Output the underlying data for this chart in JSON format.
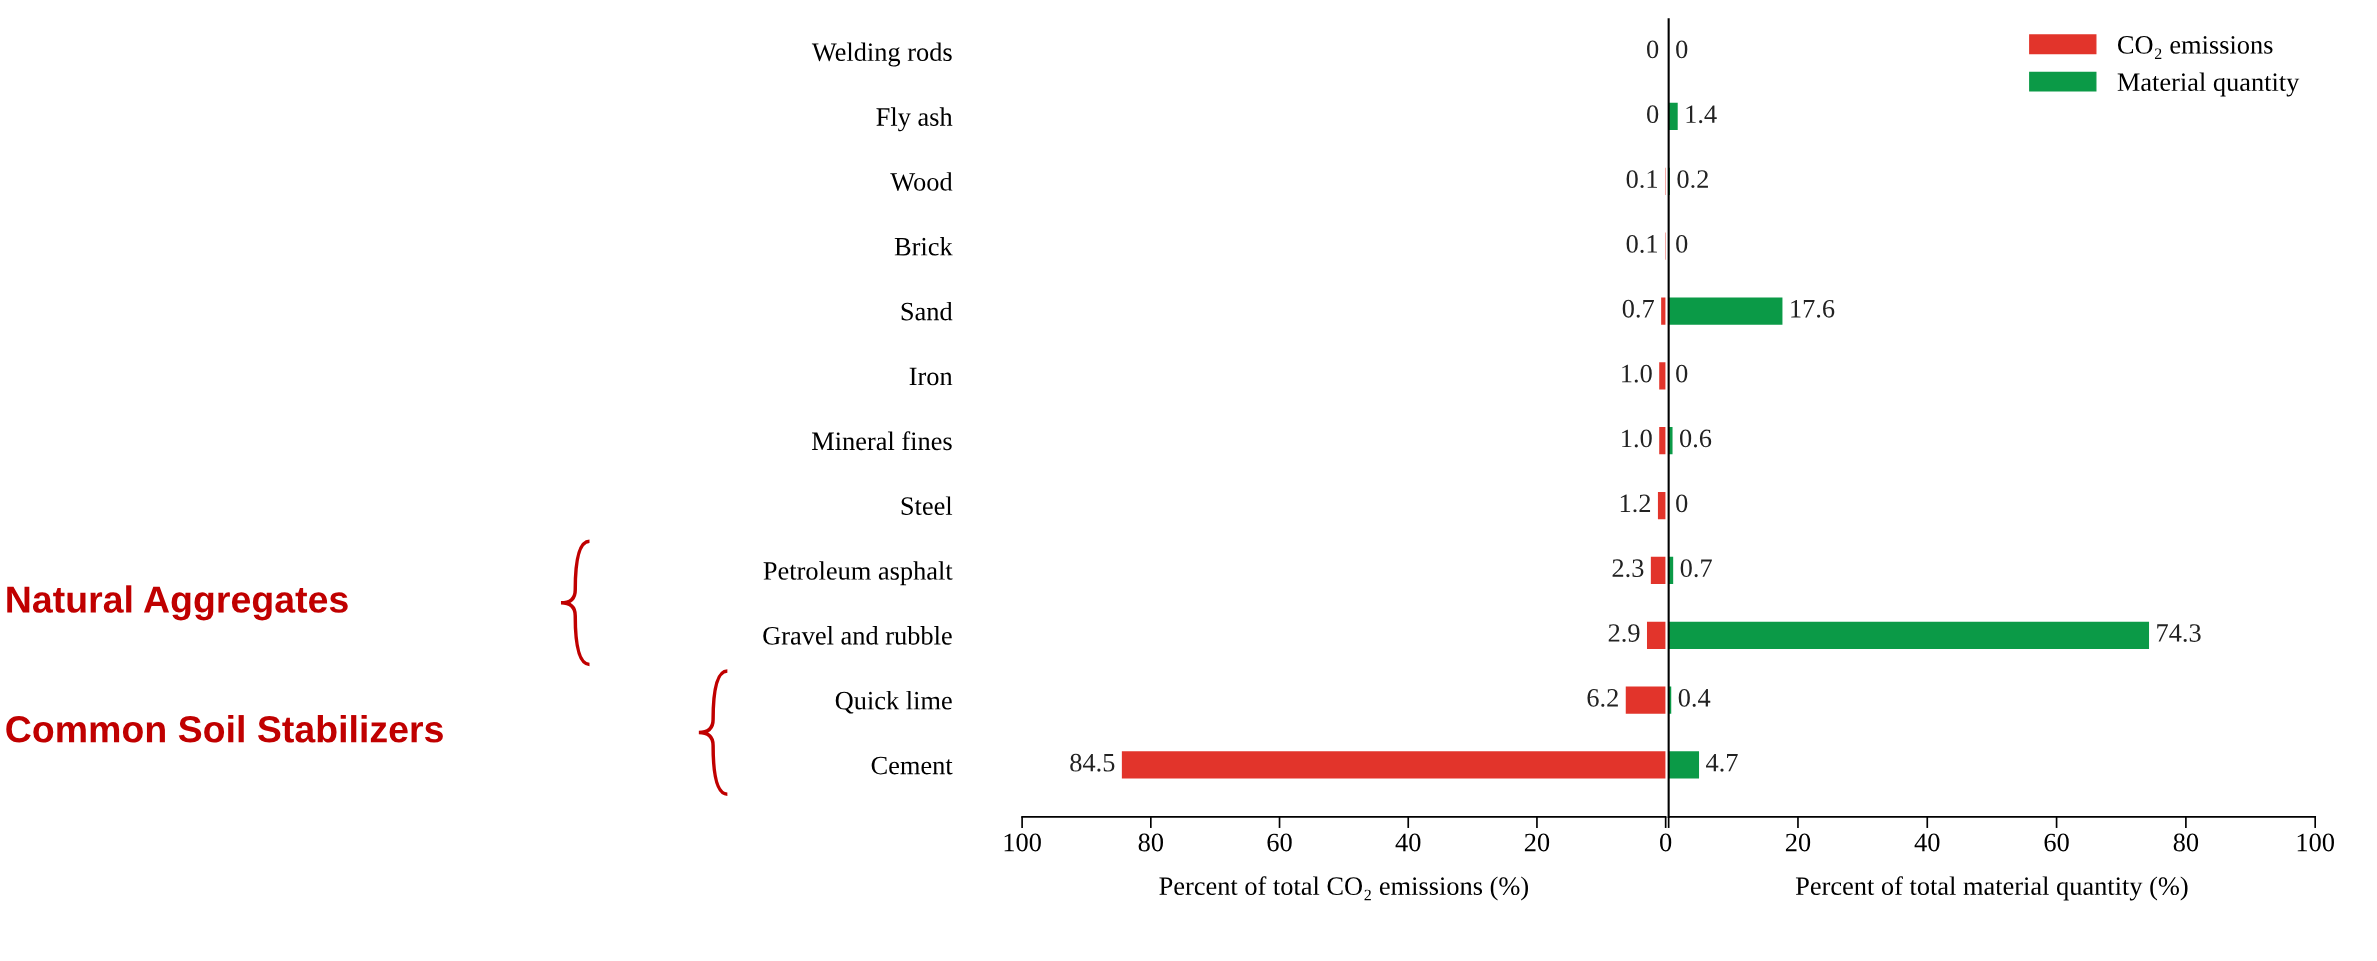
{
  "chart_data": [
    {
      "type": "bar",
      "orientation": "horizontal",
      "categories": [
        "Welding rods",
        "Fly ash",
        "Wood",
        "Brick",
        "Sand",
        "Iron",
        "Mineral fines",
        "Steel",
        "Petroleum asphalt",
        "Gravel and rubble",
        "Quick lime",
        "Cement"
      ],
      "series": [
        {
          "name": "CO₂ emissions",
          "color": "#e2342b",
          "values": [
            0,
            0,
            0.1,
            0.1,
            0.7,
            1.0,
            1.0,
            1.2,
            2.3,
            2.9,
            6.2,
            84.5
          ],
          "value_labels": [
            "0",
            "0",
            "0.1",
            "0.1",
            "0.7",
            "1.0",
            "1.0",
            "1.2",
            "2.3",
            "2.9",
            "6.2",
            "84.5"
          ]
        }
      ],
      "xlim": [
        100,
        0
      ],
      "xticks": [
        100,
        80,
        60,
        40,
        20,
        0
      ],
      "xlabel": "Percent of total CO₂ emissions (%)",
      "legend": "top right",
      "grid": false,
      "annotations": [
        "Natural Aggregates",
        "Common Soil Stabilizers"
      ]
    },
    {
      "type": "bar",
      "orientation": "horizontal",
      "categories": [
        null,
        null,
        null,
        null,
        null,
        null,
        null,
        null,
        null,
        null,
        null,
        null
      ],
      "series": [
        {
          "name": "Material quantity",
          "color": "#0b9a47",
          "values": [
            0,
            1.4,
            0.2,
            0,
            17.6,
            0,
            0.6,
            0,
            0.7,
            74.3,
            0.4,
            4.7
          ],
          "value_labels": [
            "0",
            "1.4",
            "0.2",
            "0",
            "17.6",
            "0",
            "0.6",
            "0",
            "0.7",
            "74.3",
            "0.4",
            "4.7"
          ]
        }
      ],
      "xlim": [
        0,
        100
      ],
      "xticks": [
        {
          "value": 0,
          "label": null
        },
        20,
        40,
        60,
        80,
        100
      ],
      "xlabel": "Percent of total material quantity (%)",
      "tick_labels": "x",
      "legend": "top right",
      "grid": false
    }
  ]
}
